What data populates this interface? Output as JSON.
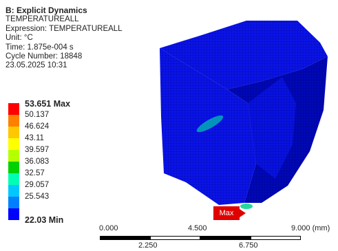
{
  "info": {
    "title": "B: Explicit Dynamics",
    "result": "TEMPERATUREALL",
    "expression": "Expression: TEMPERATUREALL",
    "unit": "Unit: °C",
    "time": "Time: 1.875e-004 s",
    "cycle": "Cycle Number: 18848",
    "date": "23.05.2025 10:31"
  },
  "legend": {
    "max_label": "53.651 Max",
    "levels": [
      "50.137",
      "46.624",
      "43.11",
      "39.597",
      "36.083",
      "32.57",
      "29.057",
      "25.543"
    ],
    "min_label": "22.03 Min",
    "colors": [
      "#ff0000",
      "#ff8000",
      "#ffc800",
      "#ffff00",
      "#b4ff00",
      "#00d200",
      "#00ffb4",
      "#00c8ff",
      "#0080ff",
      "#0000ff"
    ]
  },
  "probe": {
    "max_text": "Max"
  },
  "scale": {
    "top_ticks": [
      "0.000",
      "4.500",
      "9.000 (mm)"
    ],
    "bottom_ticks": [
      "2.250",
      "6.750"
    ]
  },
  "colors": {
    "model": "#0000e6",
    "model_dark": "#0000aa",
    "accent": "#e00000"
  }
}
